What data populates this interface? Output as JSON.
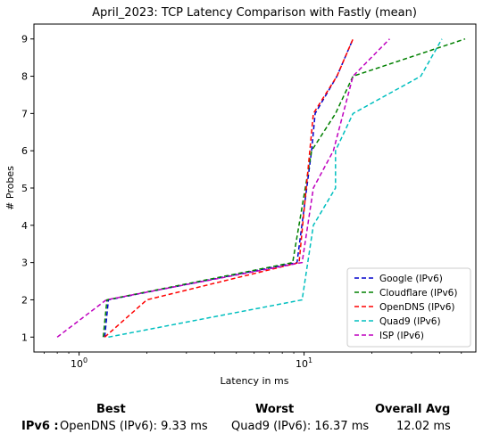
{
  "chart_data": {
    "type": "line",
    "title": "April_2023: TCP Latency Comparison with Fastly (mean)",
    "xlabel": "Latency in ms",
    "ylabel": "# Probes",
    "xscale": "log",
    "xlim": [
      0.63,
      58
    ],
    "ylim": [
      0.6,
      9.4
    ],
    "xticks": [
      {
        "value": 1,
        "base": "10",
        "exp": "0"
      },
      {
        "value": 10,
        "base": "10",
        "exp": "1"
      }
    ],
    "yticks": [
      1,
      2,
      3,
      4,
      5,
      6,
      7,
      8,
      9
    ],
    "legend_position": "lower-right",
    "series": [
      {
        "name": "Google (IPv6)",
        "color": "#0000cc",
        "points": [
          [
            1.3,
            1
          ],
          [
            1.35,
            2
          ],
          [
            9.3,
            3
          ],
          [
            10.8,
            6
          ],
          [
            11.2,
            7
          ],
          [
            14.0,
            8
          ],
          [
            16.5,
            9
          ]
        ]
      },
      {
        "name": "Cloudflare (IPv6)",
        "color": "#008000",
        "points": [
          [
            1.28,
            1
          ],
          [
            1.33,
            2
          ],
          [
            8.9,
            3
          ],
          [
            10.8,
            6
          ],
          [
            13.8,
            7
          ],
          [
            16.5,
            8
          ],
          [
            52,
            9
          ]
        ]
      },
      {
        "name": "OpenDNS (IPv6)",
        "color": "#ff0000",
        "points": [
          [
            1.3,
            1
          ],
          [
            2.0,
            2
          ],
          [
            9.5,
            3
          ],
          [
            11.0,
            7
          ],
          [
            14.0,
            8
          ],
          [
            16.5,
            9
          ]
        ]
      },
      {
        "name": "Quad9 (IPv6)",
        "color": "#00bfbf",
        "points": [
          [
            1.35,
            1
          ],
          [
            9.8,
            2
          ],
          [
            11.0,
            4
          ],
          [
            13.8,
            5
          ],
          [
            13.8,
            6
          ],
          [
            16.5,
            7
          ],
          [
            33,
            8
          ],
          [
            41,
            9
          ]
        ]
      },
      {
        "name": "ISP (IPv6)",
        "color": "#bf00bf",
        "points": [
          [
            0.8,
            1
          ],
          [
            1.32,
            2
          ],
          [
            9.8,
            3
          ],
          [
            11.0,
            5
          ],
          [
            13.5,
            6
          ],
          [
            16.5,
            8
          ],
          [
            24,
            9
          ]
        ]
      }
    ]
  },
  "summary": {
    "best_header": "Best",
    "worst_header": "Worst",
    "avg_header": "Overall Avg",
    "row_label": "IPv6 :",
    "best_value": "OpenDNS (IPv6): 9.33 ms",
    "worst_value": "Quad9 (IPv6): 16.37 ms",
    "avg_value": "12.02 ms"
  }
}
